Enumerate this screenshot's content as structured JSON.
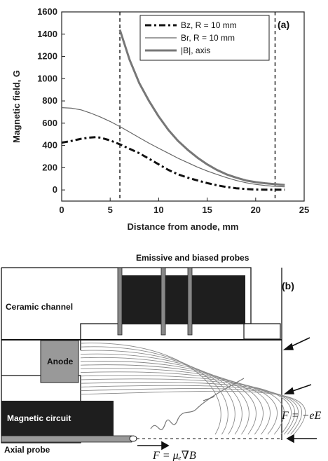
{
  "chart_data": {
    "type": "line",
    "panel_label": "(a)",
    "xlabel": "Distance from anode, mm",
    "ylabel": "Magnetic field, G",
    "xlim": [
      0,
      25
    ],
    "ylim": [
      -100,
      1600
    ],
    "x_ticks": [
      "0",
      "5",
      "10",
      "15",
      "20",
      "25"
    ],
    "y_ticks": [
      "0",
      "200",
      "400",
      "600",
      "800",
      "1000",
      "1200",
      "1400",
      "1600"
    ],
    "x_tick_values": [
      0,
      5,
      10,
      15,
      20,
      25
    ],
    "y_tick_values": [
      0,
      200,
      400,
      600,
      800,
      1000,
      1200,
      1400,
      1600
    ],
    "grid": false,
    "legend_position": "top-right",
    "reference_lines_x": [
      6,
      22
    ],
    "series": [
      {
        "name": "Bz, R = 10 mm",
        "style": "dash-dot",
        "color": "#111111",
        "x": [
          0,
          1,
          2,
          3,
          3.5,
          4,
          5,
          6,
          7,
          8,
          9,
          10,
          11,
          12,
          13,
          14,
          15,
          16,
          17,
          18,
          19,
          20,
          21,
          22,
          23
        ],
        "y": [
          425,
          440,
          460,
          472,
          475,
          470,
          445,
          410,
          370,
          330,
          280,
          230,
          180,
          140,
          110,
          85,
          62,
          42,
          26,
          15,
          8,
          4,
          2,
          2,
          2
        ]
      },
      {
        "name": "Br, R = 10 mm",
        "style": "thin-solid",
        "color": "#666666",
        "x": [
          0,
          1,
          2,
          3,
          4,
          5,
          6,
          7,
          8,
          9,
          10,
          11,
          12,
          13,
          14,
          15,
          16,
          17,
          18,
          19,
          20,
          21,
          22,
          23
        ],
        "y": [
          740,
          735,
          720,
          690,
          655,
          615,
          570,
          520,
          470,
          420,
          375,
          330,
          285,
          245,
          205,
          170,
          140,
          110,
          85,
          65,
          50,
          40,
          32,
          28
        ]
      },
      {
        "name": "|B|, axis",
        "style": "thick-solid",
        "color": "#777777",
        "x": [
          6,
          7,
          8,
          9,
          10,
          11,
          12,
          13,
          14,
          15,
          16,
          17,
          18,
          19,
          20,
          21,
          22,
          23
        ],
        "y": [
          1440,
          1170,
          960,
          800,
          660,
          540,
          440,
          360,
          290,
          230,
          180,
          140,
          110,
          85,
          70,
          60,
          52,
          45
        ]
      }
    ]
  },
  "diagram": {
    "panel_label": "(b)",
    "labels": {
      "probes": "Emissive and biased probes",
      "channel": "Ceramic channel",
      "anode": "Anode",
      "magnetic_circuit": "Magnetic circuit",
      "axial_probe": "Axial probe",
      "force_e": "F = −eE",
      "force_b": "F = μₑ∇B"
    }
  }
}
